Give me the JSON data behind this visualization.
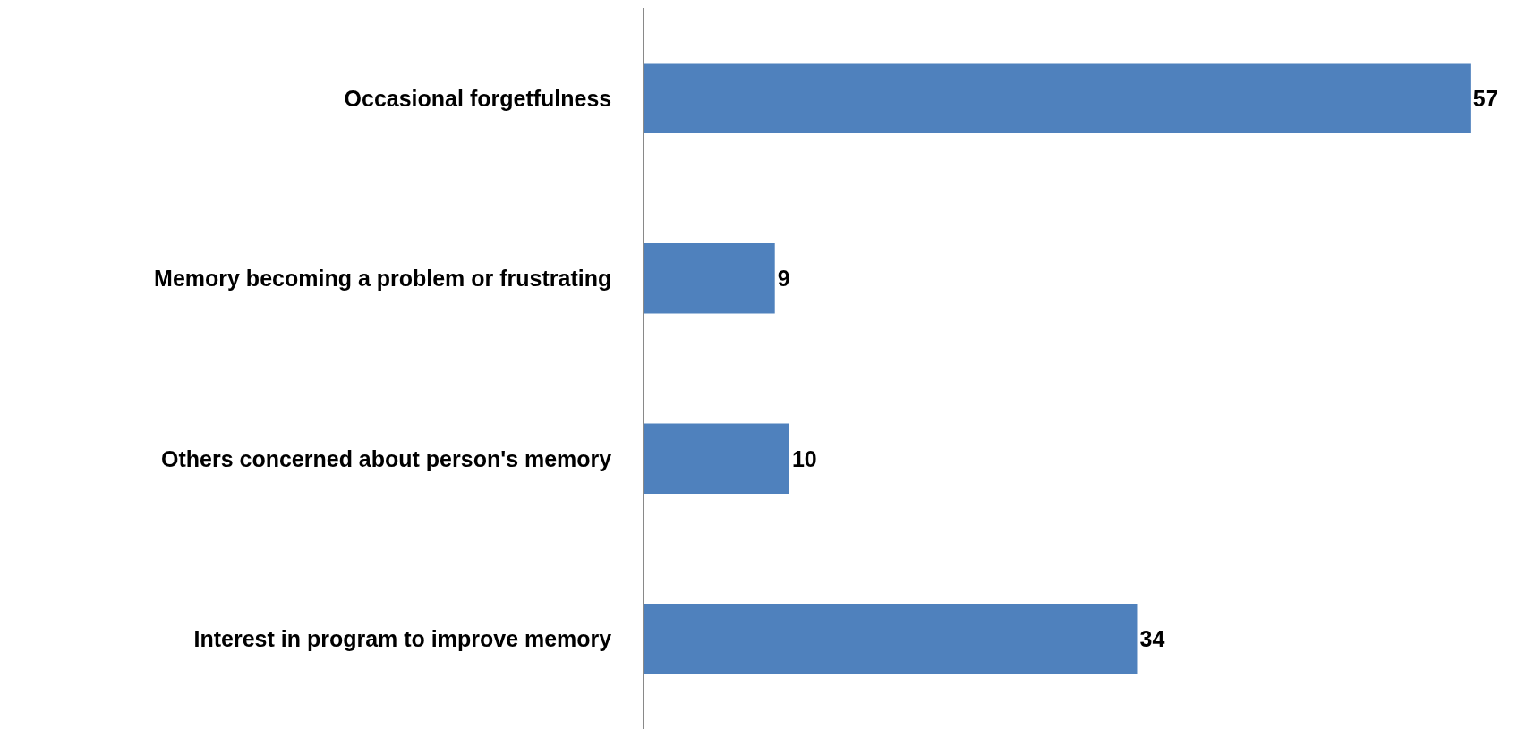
{
  "chart_data": {
    "type": "bar",
    "orientation": "horizontal",
    "categories": [
      "Occasional forgetfulness",
      "Memory becoming a problem or frustrating",
      "Others concerned about person's memory",
      "Interest in program to improve memory"
    ],
    "values": [
      57,
      9,
      10,
      34
    ],
    "color": "#4f81bd",
    "data_labels": true,
    "tick_labels": "y"
  }
}
